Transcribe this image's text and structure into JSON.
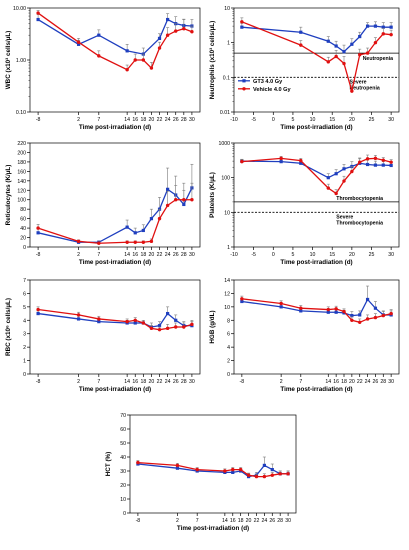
{
  "colors": {
    "gt3": "#1f3fbf",
    "veh": "#e01010",
    "error": "#7a7a7a",
    "axis": "#000000"
  },
  "chart_data": [
    {
      "id": "wbc",
      "type": "line",
      "ylabel": "WBC (x10³ cells/µL)",
      "xlabel": "Time post-irradiation (d)",
      "yscale": "log",
      "ylim": [
        0.1,
        10
      ],
      "yticks": [
        0.1,
        1,
        10
      ],
      "ytick_labels": [
        "0.10",
        "1.00",
        "10.00"
      ],
      "x": [
        -8,
        2,
        7,
        14,
        18,
        20,
        22,
        24,
        26,
        28,
        30
      ],
      "xticks": [
        -8,
        2,
        7,
        14,
        16,
        18,
        20,
        22,
        24,
        26,
        28,
        30
      ],
      "ref_lines": [],
      "legend": [],
      "series": [
        {
          "color_key": "gt3",
          "marker": "square",
          "x": [
            -8,
            2,
            7,
            14,
            18,
            22,
            24,
            26,
            28,
            30
          ],
          "y": [
            6.0,
            2.0,
            3.0,
            1.5,
            1.3,
            2.6,
            6.0,
            5.0,
            4.6,
            4.5
          ],
          "err": [
            1.5,
            0.4,
            0.8,
            0.5,
            0.4,
            0.6,
            1.8,
            1.8,
            1.5,
            1.5
          ]
        },
        {
          "color_key": "veh",
          "marker": "circle",
          "x": [
            -8,
            2,
            7,
            14,
            16,
            18,
            20,
            22,
            24,
            26,
            28,
            30
          ],
          "y": [
            8.0,
            2.2,
            1.2,
            0.65,
            1.0,
            1.0,
            0.7,
            1.7,
            3.0,
            3.6,
            4.0,
            3.5
          ],
          "err": [
            1.0,
            0.4,
            0.3,
            0.15,
            0.3,
            0.3,
            0.2,
            0.5,
            1.2,
            1.4,
            2.0,
            1.0
          ]
        }
      ]
    },
    {
      "id": "neut",
      "type": "line",
      "ylabel": "Neutrophils (x10³ cells/µL)",
      "xlabel": "Time post-irradiation (d)",
      "yscale": "log",
      "ylim": [
        0.01,
        10
      ],
      "yticks": [
        0.01,
        0.1,
        1,
        10
      ],
      "ytick_labels": [
        "0.01",
        "0.1",
        "1",
        "10"
      ],
      "xticks": [
        -10,
        -5,
        0,
        5,
        10,
        15,
        20,
        25,
        30
      ],
      "ref_lines": [
        {
          "y": 0.5,
          "style": "solid",
          "label": "Neutropenia"
        },
        {
          "y": 0.1,
          "style": "dashed",
          "label": "Severe\nNeutropenia"
        }
      ],
      "legend": [
        {
          "label": "GT3 4.0 Gy",
          "color_key": "gt3",
          "marker": "square"
        },
        {
          "label": "Vehicle 4.0 Gy",
          "color_key": "veh",
          "marker": "circle"
        }
      ],
      "series": [
        {
          "color_key": "gt3",
          "marker": "square",
          "x": [
            -8,
            7,
            14,
            16,
            18,
            20,
            22,
            24,
            26,
            28,
            30
          ],
          "y": [
            2.8,
            2.0,
            1.1,
            0.8,
            0.55,
            0.9,
            1.5,
            3.0,
            3.0,
            2.8,
            2.8
          ],
          "err": [
            0.8,
            0.8,
            0.4,
            0.3,
            0.3,
            0.4,
            0.5,
            0.8,
            1.0,
            1.0,
            1.0
          ]
        },
        {
          "color_key": "veh",
          "marker": "circle",
          "x": [
            -8,
            7,
            14,
            16,
            18,
            20,
            22,
            24,
            26,
            28,
            30
          ],
          "y": [
            4.0,
            0.85,
            0.28,
            0.4,
            0.25,
            0.04,
            0.45,
            0.5,
            1.0,
            1.8,
            1.7
          ],
          "err": [
            1.2,
            0.3,
            0.1,
            0.2,
            0.15,
            0.02,
            0.2,
            0.2,
            0.4,
            0.8,
            0.6
          ]
        }
      ]
    },
    {
      "id": "retic",
      "type": "line",
      "ylabel": "Reticulocytes (K/µL)",
      "xlabel": "Time post-irradiation (d)",
      "yscale": "linear",
      "ylim": [
        0,
        220
      ],
      "yticks": [
        0,
        20,
        40,
        60,
        80,
        100,
        120,
        140,
        160,
        180,
        200,
        220
      ],
      "ytick_labels": [
        "0",
        "20",
        "40",
        "60",
        "80",
        "100",
        "120",
        "140",
        "160",
        "180",
        "200",
        "220"
      ],
      "xticks": [
        -8,
        2,
        7,
        14,
        16,
        18,
        20,
        22,
        24,
        26,
        28,
        30
      ],
      "ref_lines": [],
      "legend": [],
      "series": [
        {
          "color_key": "gt3",
          "marker": "square",
          "x": [
            -8,
            2,
            7,
            14,
            16,
            18,
            20,
            22,
            24,
            26,
            28,
            30
          ],
          "y": [
            30,
            10,
            10,
            42,
            30,
            35,
            60,
            80,
            122,
            110,
            90,
            125
          ],
          "err": [
            8,
            3,
            3,
            15,
            10,
            12,
            20,
            25,
            45,
            40,
            30,
            50
          ]
        },
        {
          "color_key": "veh",
          "marker": "circle",
          "x": [
            -8,
            2,
            7,
            14,
            16,
            18,
            20,
            22,
            24,
            26,
            28,
            30
          ],
          "y": [
            40,
            12,
            8,
            10,
            10,
            10,
            12,
            60,
            88,
            100,
            100,
            100
          ],
          "err": [
            8,
            3,
            3,
            3,
            3,
            3,
            5,
            20,
            30,
            30,
            35,
            35
          ]
        }
      ]
    },
    {
      "id": "plt",
      "type": "line",
      "ylabel": "Platelets (K/µL)",
      "xlabel": "Time post-irradiation (d)",
      "yscale": "log",
      "ylim": [
        1,
        1000
      ],
      "yticks": [
        1,
        10,
        100,
        1000
      ],
      "ytick_labels": [
        "1",
        "10",
        "100",
        "1000"
      ],
      "xticks": [
        -10,
        -5,
        0,
        5,
        10,
        15,
        20,
        25,
        30
      ],
      "ref_lines": [
        {
          "y": 20,
          "style": "solid",
          "label": "Thrombocytopenia"
        },
        {
          "y": 10,
          "style": "dashed",
          "label": "Severe\nThrombocytopenia"
        }
      ],
      "legend": [],
      "series": [
        {
          "color_key": "gt3",
          "marker": "square",
          "x": [
            -8,
            2,
            7,
            14,
            16,
            18,
            20,
            22,
            24,
            26,
            28,
            30
          ],
          "y": [
            300,
            290,
            260,
            100,
            130,
            180,
            210,
            260,
            240,
            230,
            230,
            225
          ],
          "err": [
            40,
            40,
            40,
            30,
            40,
            60,
            80,
            90,
            80,
            70,
            60,
            60
          ]
        },
        {
          "color_key": "veh",
          "marker": "circle",
          "x": [
            -8,
            2,
            7,
            14,
            16,
            18,
            20,
            22,
            24,
            26,
            28,
            30
          ],
          "y": [
            290,
            360,
            310,
            50,
            35,
            80,
            150,
            280,
            350,
            360,
            320,
            280
          ],
          "err": [
            40,
            50,
            50,
            15,
            10,
            30,
            60,
            90,
            100,
            80,
            60,
            50
          ]
        }
      ]
    },
    {
      "id": "rbc",
      "type": "line",
      "ylabel": "RBC (x10⁶ cells/µL)",
      "xlabel": "Time post-irradiation (d)",
      "yscale": "linear",
      "ylim": [
        0,
        7
      ],
      "yticks": [
        0,
        1,
        2,
        3,
        4,
        5,
        6,
        7
      ],
      "ytick_labels": [
        "0",
        "1",
        "2",
        "3",
        "4",
        "5",
        "6",
        "7"
      ],
      "xticks": [
        -8,
        2,
        7,
        14,
        16,
        18,
        20,
        22,
        24,
        26,
        28,
        30
      ],
      "ref_lines": [],
      "legend": [],
      "series": [
        {
          "color_key": "gt3",
          "marker": "square",
          "x": [
            -8,
            2,
            7,
            14,
            16,
            18,
            20,
            22,
            24,
            26,
            28,
            30
          ],
          "y": [
            4.5,
            4.1,
            3.9,
            3.8,
            3.8,
            3.8,
            3.5,
            3.6,
            4.5,
            4.0,
            3.6,
            3.6
          ],
          "err": [
            0.2,
            0.2,
            0.2,
            0.2,
            0.2,
            0.2,
            0.3,
            0.3,
            0.5,
            0.4,
            0.3,
            0.3
          ]
        },
        {
          "color_key": "veh",
          "marker": "circle",
          "x": [
            -8,
            2,
            7,
            14,
            16,
            18,
            20,
            22,
            24,
            26,
            28,
            30
          ],
          "y": [
            4.8,
            4.4,
            4.1,
            3.9,
            4.0,
            3.8,
            3.4,
            3.3,
            3.4,
            3.5,
            3.5,
            3.7
          ],
          "err": [
            0.2,
            0.2,
            0.2,
            0.2,
            0.2,
            0.2,
            0.2,
            0.2,
            0.3,
            0.3,
            0.3,
            0.3
          ]
        }
      ]
    },
    {
      "id": "hgb",
      "type": "line",
      "ylabel": "HGB (g/dL)",
      "xlabel": "Time post-irradiation (d)",
      "yscale": "linear",
      "ylim": [
        0,
        14
      ],
      "yticks": [
        0,
        2,
        4,
        6,
        8,
        10,
        12,
        14
      ],
      "ytick_labels": [
        "0",
        "2",
        "4",
        "6",
        "8",
        "10",
        "12",
        "14"
      ],
      "xticks": [
        -8,
        2,
        7,
        14,
        16,
        18,
        20,
        22,
        24,
        26,
        28,
        30
      ],
      "ref_lines": [],
      "legend": [],
      "series": [
        {
          "color_key": "gt3",
          "marker": "square",
          "x": [
            -8,
            2,
            7,
            14,
            16,
            18,
            20,
            22,
            24,
            26,
            28,
            30
          ],
          "y": [
            10.8,
            10.0,
            9.4,
            9.2,
            9.2,
            9.1,
            8.7,
            8.8,
            11.1,
            9.8,
            8.8,
            8.8
          ],
          "err": [
            0.4,
            0.4,
            0.4,
            0.4,
            0.4,
            0.4,
            0.6,
            0.6,
            2.0,
            1.0,
            0.6,
            0.6
          ]
        },
        {
          "color_key": "veh",
          "marker": "circle",
          "x": [
            -8,
            2,
            7,
            14,
            16,
            18,
            20,
            22,
            24,
            26,
            28,
            30
          ],
          "y": [
            11.2,
            10.5,
            9.8,
            9.6,
            9.7,
            9.3,
            8.0,
            7.7,
            8.2,
            8.4,
            8.7,
            9.0
          ],
          "err": [
            0.4,
            0.4,
            0.4,
            0.4,
            0.4,
            0.4,
            0.5,
            0.5,
            0.6,
            0.6,
            0.6,
            0.6
          ]
        }
      ]
    },
    {
      "id": "hct",
      "type": "line",
      "ylabel": "HCT (%)",
      "xlabel": "Time post-irradiation (d)",
      "yscale": "linear",
      "ylim": [
        0,
        70
      ],
      "yticks": [
        0,
        10,
        20,
        30,
        40,
        50,
        60,
        70
      ],
      "ytick_labels": [
        "0",
        "10",
        "20",
        "30",
        "40",
        "50",
        "60",
        "70"
      ],
      "xticks": [
        -8,
        2,
        7,
        14,
        16,
        18,
        20,
        22,
        24,
        26,
        28,
        30
      ],
      "ref_lines": [],
      "legend": [],
      "series": [
        {
          "color_key": "gt3",
          "marker": "square",
          "x": [
            -8,
            2,
            7,
            14,
            16,
            18,
            20,
            22,
            24,
            26,
            28,
            30
          ],
          "y": [
            35,
            32,
            30,
            29,
            29,
            30,
            26,
            27,
            34,
            31,
            28,
            28
          ],
          "err": [
            1.5,
            1.5,
            1.5,
            1.5,
            1.5,
            1.5,
            2,
            2,
            6,
            4,
            2,
            2
          ]
        },
        {
          "color_key": "veh",
          "marker": "circle",
          "x": [
            -8,
            2,
            7,
            14,
            16,
            18,
            20,
            22,
            24,
            26,
            28,
            30
          ],
          "y": [
            36,
            34,
            31,
            30,
            31,
            31,
            27,
            26,
            26,
            27,
            28,
            28
          ],
          "err": [
            1.5,
            1.5,
            1.5,
            1.5,
            1.5,
            1.5,
            1.5,
            1.5,
            2,
            2,
            2,
            2
          ]
        }
      ]
    }
  ]
}
